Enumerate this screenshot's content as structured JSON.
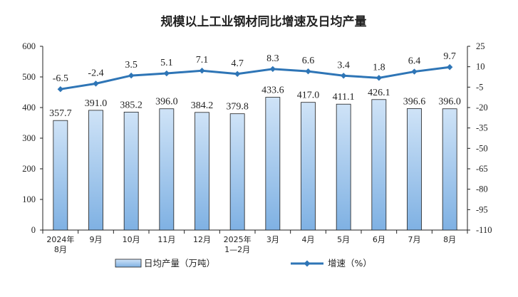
{
  "chart_data": {
    "type": "bar+line",
    "title": "规模以上工业钢材同比增速及日均产量",
    "categories": [
      [
        "2024年",
        "8月"
      ],
      [
        "9月"
      ],
      [
        "10月"
      ],
      [
        "11月"
      ],
      [
        "12月"
      ],
      [
        "2025年",
        "1—2月"
      ],
      [
        "3月"
      ],
      [
        "4月"
      ],
      [
        "5月"
      ],
      [
        "6月"
      ],
      [
        "7月"
      ],
      [
        "8月"
      ]
    ],
    "series": [
      {
        "name": "日均产量（万吨）",
        "type": "bar",
        "axis": "left",
        "values": [
          357.7,
          391.0,
          385.2,
          396.0,
          384.2,
          379.8,
          433.6,
          417.0,
          411.1,
          426.1,
          396.6,
          396.0
        ],
        "labels": [
          "357.7",
          "391.0",
          "385.2",
          "396.0",
          "384.2",
          "379.8",
          "433.6",
          "417.0",
          "411.1",
          "426.1",
          "396.6",
          "396.0"
        ]
      },
      {
        "name": "增速（%）",
        "type": "line",
        "axis": "right",
        "values": [
          -6.5,
          -2.4,
          3.5,
          5.1,
          7.1,
          4.7,
          8.3,
          6.6,
          3.4,
          1.8,
          6.4,
          9.7
        ],
        "labels": [
          "-6.5",
          "-2.4",
          "3.5",
          "5.1",
          "7.1",
          "4.7",
          "8.3",
          "6.6",
          "3.4",
          "1.8",
          "6.4",
          "9.7"
        ]
      }
    ],
    "y_left": {
      "ylim": [
        0,
        600
      ],
      "ticks": [
        "0",
        "100",
        "200",
        "300",
        "400",
        "500",
        "600"
      ]
    },
    "y_right": {
      "ylim": [
        -110,
        25
      ],
      "ticks": [
        "-110",
        "-95",
        "-80",
        "-65",
        "-50",
        "-35",
        "-20",
        "-5",
        "10",
        "25"
      ]
    },
    "grid": false,
    "legend_position": "bottom",
    "colors": {
      "bar_fill_top": "#cfe3f7",
      "bar_fill_bottom": "#7fb1e3",
      "bar_stroke": "#1f1f1f",
      "line": "#2e75b6",
      "axis": "#222222"
    }
  }
}
